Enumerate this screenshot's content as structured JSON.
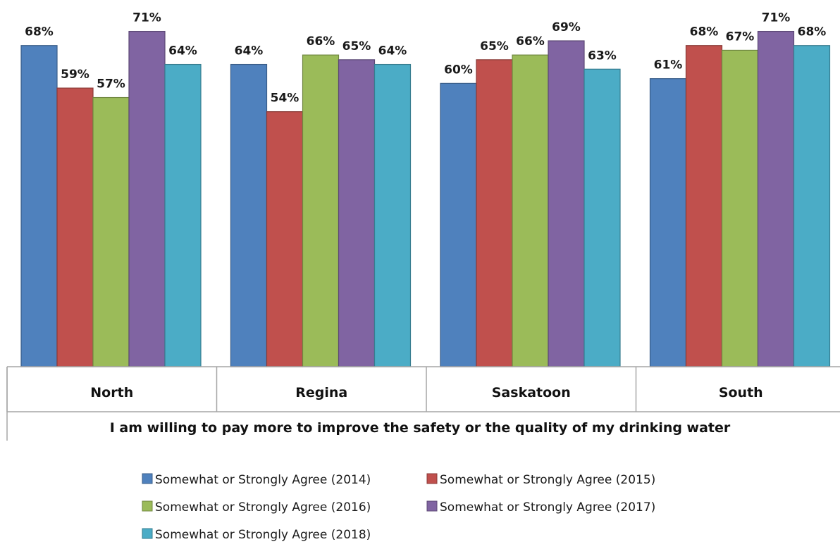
{
  "chart_data": {
    "type": "bar",
    "categories": [
      "North",
      "Regina",
      "Saskatoon",
      "South"
    ],
    "group_label": "I am willing to pay more to improve the safety or the quality of my drinking water",
    "series": [
      {
        "name": "Somewhat or Strongly Agree (2014)",
        "color": "#4f81bd",
        "values": [
          68,
          64,
          60,
          61
        ]
      },
      {
        "name": "Somewhat or Strongly Agree (2015)",
        "color": "#c0504d",
        "values": [
          59,
          54,
          65,
          68
        ]
      },
      {
        "name": "Somewhat or Strongly Agree (2016)",
        "color": "#9bbb59",
        "values": [
          57,
          66,
          66,
          67
        ]
      },
      {
        "name": "Somewhat or Strongly Agree (2017)",
        "color": "#8064a2",
        "values": [
          71,
          65,
          69,
          71
        ]
      },
      {
        "name": "Somewhat or Strongly Agree (2018)",
        "color": "#4bacc6",
        "values": [
          64,
          64,
          63,
          68
        ]
      }
    ],
    "value_suffix": "%",
    "legend_position": "bottom",
    "grid": false
  }
}
